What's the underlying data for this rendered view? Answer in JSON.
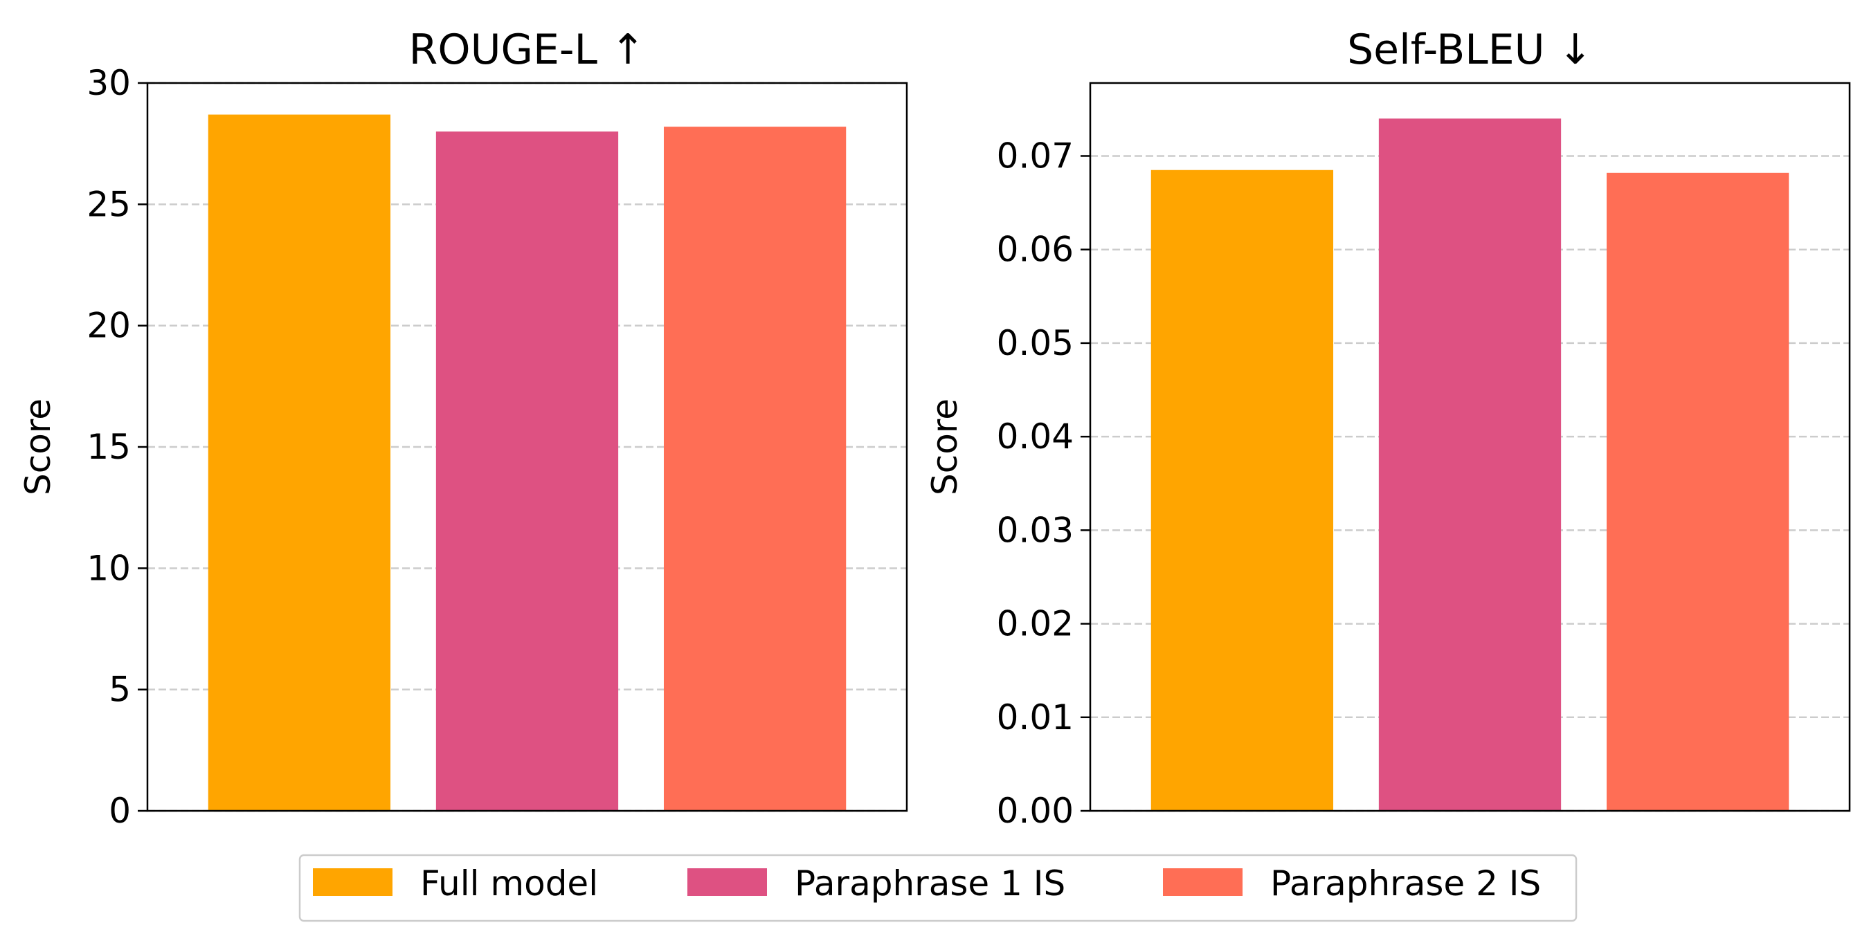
{
  "chart_data": [
    {
      "type": "bar",
      "title": "ROUGE-L ↑",
      "ylabel": "Score",
      "xlabel": "",
      "categories": [
        "Full model",
        "Paraphrase 1 IS",
        "Paraphrase 2 IS"
      ],
      "values": [
        28.7,
        28.0,
        28.2
      ],
      "ylim": [
        0,
        30
      ],
      "yticks": [
        0,
        5,
        10,
        15,
        20,
        25,
        30
      ],
      "ytick_labels": [
        "0",
        "5",
        "10",
        "15",
        "20",
        "25",
        "30"
      ],
      "grid": "y, dashed",
      "colors": [
        "#FFA500",
        "#DE5182",
        "#FF6E55"
      ]
    },
    {
      "type": "bar",
      "title": "Self-BLEU ↓",
      "ylabel": "Score",
      "xlabel": "",
      "categories": [
        "Full model",
        "Paraphrase 1 IS",
        "Paraphrase 2 IS"
      ],
      "values": [
        0.0685,
        0.074,
        0.0682
      ],
      "ylim": [
        0,
        0.0778
      ],
      "yticks": [
        0,
        0.01,
        0.02,
        0.03,
        0.04,
        0.05,
        0.06,
        0.07
      ],
      "ytick_labels": [
        "0.00",
        "0.01",
        "0.02",
        "0.03",
        "0.04",
        "0.05",
        "0.06",
        "0.07"
      ],
      "grid": "y, dashed",
      "colors": [
        "#FFA500",
        "#DE5182",
        "#FF6E55"
      ]
    }
  ],
  "legend": {
    "placement": "bottom-center",
    "entries": [
      {
        "label": "Full model",
        "color": "#FFA500"
      },
      {
        "label": "Paraphrase 1 IS",
        "color": "#DE5182"
      },
      {
        "label": "Paraphrase 2 IS",
        "color": "#FF6E55"
      }
    ]
  }
}
